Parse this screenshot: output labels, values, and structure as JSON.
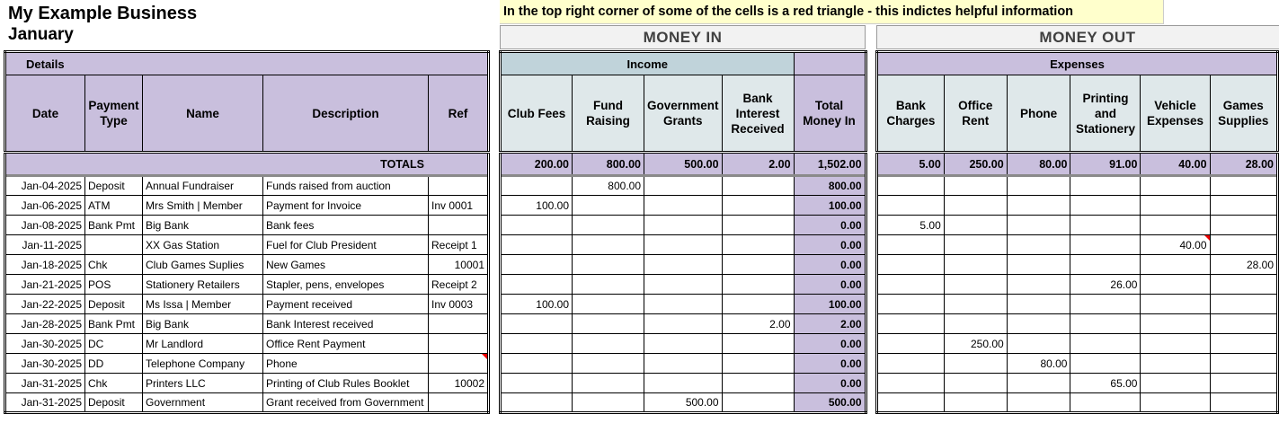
{
  "header": {
    "business": "My Example Business",
    "month": "January"
  },
  "banner": "In the top right corner of some of the cells is a red triangle - this indictes helpful information",
  "money_in_title": "MONEY IN",
  "money_out_title": "MONEY OUT",
  "details": {
    "group": "Details",
    "columns": [
      "Date",
      "Payment Type",
      "Name",
      "Description",
      "Ref"
    ],
    "totals_label": "TOTALS"
  },
  "income": {
    "group": "Income",
    "columns": [
      "Club Fees",
      "Fund Raising",
      "Government Grants",
      "Bank Interest Received",
      "Total Money In"
    ],
    "totals": [
      "200.00",
      "800.00",
      "500.00",
      "2.00",
      "1,502.00"
    ]
  },
  "expenses": {
    "group": "Expenses",
    "columns": [
      "Bank Charges",
      "Office Rent",
      "Phone",
      "Printing and Stationery",
      "Vehicle Expenses",
      "Games Supplies"
    ],
    "totals": [
      "5.00",
      "250.00",
      "80.00",
      "91.00",
      "40.00",
      "28.00"
    ]
  },
  "comment_color": "#ee0000",
  "rows": [
    {
      "date": "Jan-04-2025",
      "type": "Deposit",
      "name": "Annual Fundraiser",
      "desc": "Funds raised from auction",
      "ref": "",
      "in": [
        "",
        "800.00",
        "",
        "",
        "800.00"
      ],
      "out": [
        "",
        "",
        "",
        "",
        "",
        ""
      ]
    },
    {
      "date": "Jan-06-2025",
      "type": "ATM",
      "name": "Mrs Smith | Member",
      "desc": "Payment for Invoice",
      "ref": "Inv 0001",
      "in": [
        "100.00",
        "",
        "",
        "",
        "100.00"
      ],
      "out": [
        "",
        "",
        "",
        "",
        "",
        ""
      ]
    },
    {
      "date": "Jan-08-2025",
      "type": "Bank Pmt",
      "name": "Big Bank",
      "desc": "Bank fees",
      "ref": "",
      "in": [
        "",
        "",
        "",
        "",
        "0.00"
      ],
      "out": [
        "5.00",
        "",
        "",
        "",
        "",
        ""
      ]
    },
    {
      "date": "Jan-11-2025",
      "type": "",
      "name": "XX Gas Station",
      "desc": "Fuel for Club President",
      "ref": "Receipt 1",
      "in": [
        "",
        "",
        "",
        "",
        "0.00"
      ],
      "out": [
        "",
        "",
        "",
        "",
        "40.00",
        ""
      ],
      "flag_out": 4
    },
    {
      "date": "Jan-18-2025",
      "type": "Chk",
      "name": "Club Games Suplies",
      "desc": "New Games",
      "ref": "10001",
      "ref_num": true,
      "in": [
        "",
        "",
        "",
        "",
        "0.00"
      ],
      "out": [
        "",
        "",
        "",
        "",
        "",
        "28.00"
      ]
    },
    {
      "date": "Jan-21-2025",
      "type": "POS",
      "name": "Stationery Retailers",
      "desc": "Stapler, pens, envelopes",
      "ref": "Receipt 2",
      "in": [
        "",
        "",
        "",
        "",
        "0.00"
      ],
      "out": [
        "",
        "",
        "",
        "26.00",
        "",
        ""
      ]
    },
    {
      "date": "Jan-22-2025",
      "type": "Deposit",
      "name": "Ms Issa | Member",
      "desc": "Payment received",
      "ref": "Inv 0003",
      "in": [
        "100.00",
        "",
        "",
        "",
        "100.00"
      ],
      "out": [
        "",
        "",
        "",
        "",
        "",
        ""
      ]
    },
    {
      "date": "Jan-28-2025",
      "type": "Bank Pmt",
      "name": "Big Bank",
      "desc": "Bank Interest received",
      "ref": "",
      "in": [
        "",
        "",
        "",
        "2.00",
        "2.00"
      ],
      "out": [
        "",
        "",
        "",
        "",
        "",
        ""
      ]
    },
    {
      "date": "Jan-30-2025",
      "type": "DC",
      "name": "Mr Landlord",
      "desc": "Office Rent Payment",
      "ref": "",
      "in": [
        "",
        "",
        "",
        "",
        "0.00"
      ],
      "out": [
        "",
        "250.00",
        "",
        "",
        "",
        ""
      ]
    },
    {
      "date": "Jan-30-2025",
      "type": "DD",
      "name": "Telephone Company",
      "desc": "Phone",
      "ref": "",
      "flag_ref": true,
      "in": [
        "",
        "",
        "",
        "",
        "0.00"
      ],
      "out": [
        "",
        "",
        "80.00",
        "",
        "",
        ""
      ]
    },
    {
      "date": "Jan-31-2025",
      "type": "Chk",
      "name": "Printers LLC",
      "desc": "Printing of Club Rules Booklet",
      "ref": "10002",
      "ref_num": true,
      "in": [
        "",
        "",
        "",
        "",
        "0.00"
      ],
      "out": [
        "",
        "",
        "",
        "65.00",
        "",
        ""
      ]
    },
    {
      "date": "Jan-31-2025",
      "type": "Deposit",
      "name": "Government",
      "desc": "Grant received from Government",
      "ref": "",
      "in": [
        "",
        "",
        "500.00",
        "",
        "500.00"
      ],
      "out": [
        "",
        "",
        "",
        "",
        "",
        ""
      ]
    }
  ]
}
